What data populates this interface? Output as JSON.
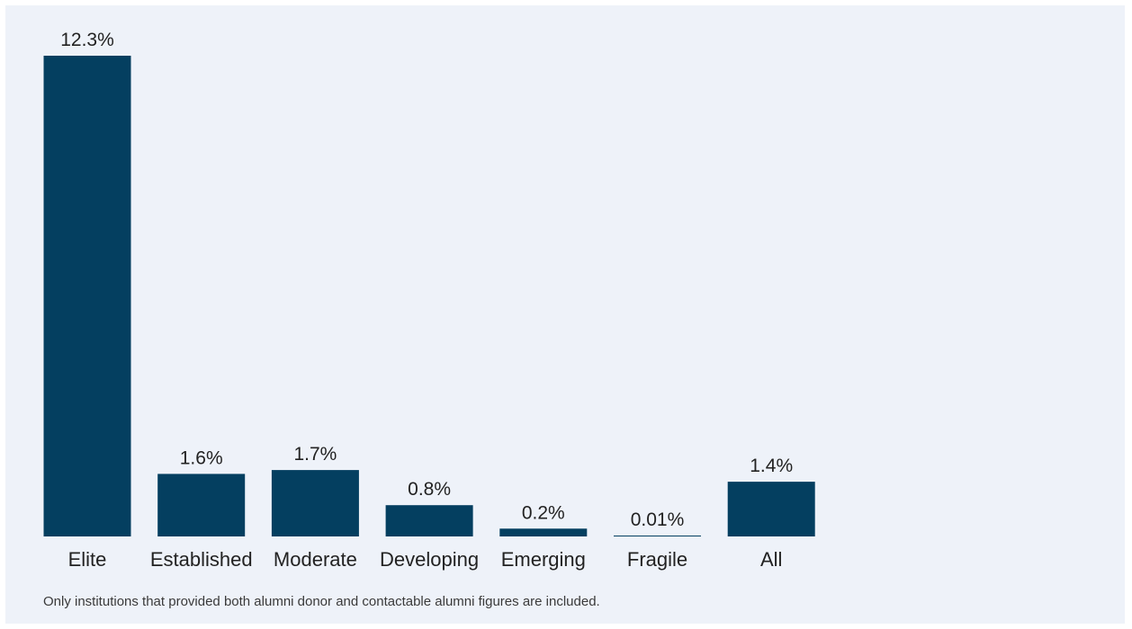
{
  "colors": {
    "background": "#eef2f9",
    "bar": "#043f60",
    "text": "#222222"
  },
  "chart_data": {
    "type": "bar",
    "title": "",
    "xlabel": "",
    "ylabel": "",
    "categories": [
      "Elite",
      "Established",
      "Moderate",
      "Developing",
      "Emerging",
      "Fragile",
      "All"
    ],
    "values": [
      12.3,
      1.6,
      1.7,
      0.8,
      0.2,
      0.01,
      1.4
    ],
    "value_labels": [
      "12.3%",
      "1.6%",
      "1.7%",
      "0.8%",
      "0.2%",
      "0.01%",
      "1.4%"
    ],
    "ylim": [
      0,
      12.3
    ],
    "grid": false,
    "legend": "none"
  },
  "footnote": "Only institutions that provided both alumni donor and contactable alumni figures are included."
}
